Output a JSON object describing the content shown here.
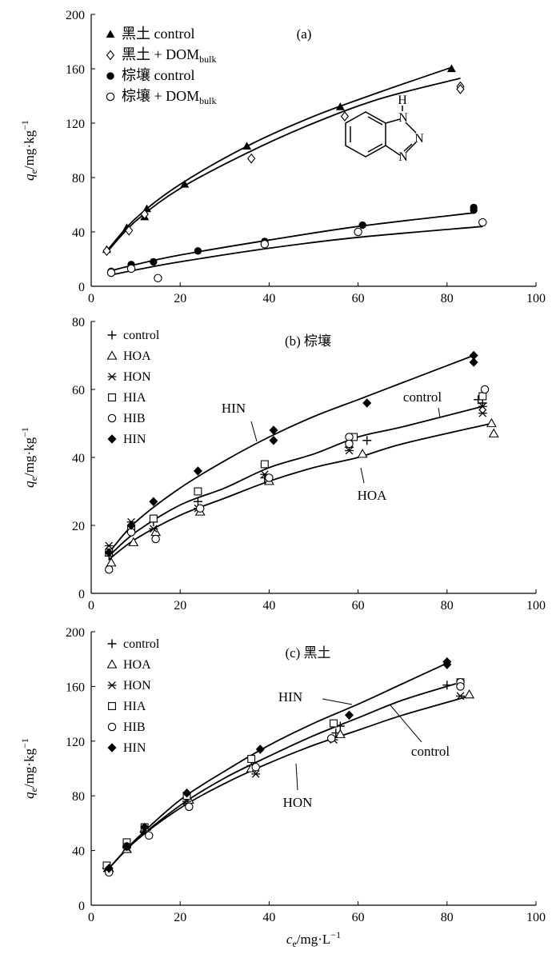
{
  "figure": {
    "x_axis_label": {
      "symbol": "c",
      "sub": "e",
      "unit": "/mg·L",
      "sup": "−1"
    },
    "y_axis_label": {
      "symbol": "q",
      "sub": "e",
      "unit": "/mg·kg",
      "sup": "−1"
    }
  },
  "chart_data": [
    {
      "type": "scatter",
      "panel": "a",
      "title": "(a)",
      "xlim": [
        0,
        100
      ],
      "ylim": [
        0,
        200
      ],
      "xticks": [
        0,
        20,
        40,
        60,
        80,
        100
      ],
      "yticks": [
        0,
        40,
        80,
        120,
        160,
        200
      ],
      "legend_position": "top-left",
      "series": [
        {
          "name": "黑土 control",
          "marker": "triangle-filled",
          "points": [
            [
              3.5,
              27
            ],
            [
              8,
              43
            ],
            [
              12,
              51
            ],
            [
              12.5,
              57
            ],
            [
              21,
              75
            ],
            [
              35,
              103
            ],
            [
              56,
              132
            ],
            [
              81,
              160
            ]
          ]
        },
        {
          "name": "黑土 + DOM",
          "name_sub": "bulk",
          "marker": "diamond-open",
          "points": [
            [
              3.5,
              26
            ],
            [
              8.5,
              41
            ],
            [
              12,
              53
            ],
            [
              36,
              94
            ],
            [
              57,
              125
            ],
            [
              83,
              147
            ],
            [
              83,
              145
            ]
          ]
        },
        {
          "name": "棕壤 control",
          "marker": "circle-filled",
          "points": [
            [
              4.5,
              11
            ],
            [
              9,
              16
            ],
            [
              14,
              18
            ],
            [
              24,
              26
            ],
            [
              39,
              33
            ],
            [
              61,
              45
            ],
            [
              86,
              58
            ],
            [
              86,
              56
            ]
          ]
        },
        {
          "name": "棕壤 + DOM",
          "name_sub": "bulk",
          "marker": "circle-open",
          "points": [
            [
              4.5,
              10
            ],
            [
              9,
              13
            ],
            [
              15,
              6
            ],
            [
              39,
              31
            ],
            [
              60,
              40
            ],
            [
              88,
              47
            ]
          ]
        }
      ],
      "fits": [
        {
          "points": [
            [
              3.5,
              26
            ],
            [
              10,
              50
            ],
            [
              20,
              75
            ],
            [
              35,
              103
            ],
            [
              50,
              125
            ],
            [
              65,
              143
            ],
            [
              81,
              161
            ]
          ]
        },
        {
          "points": [
            [
              3.5,
              25
            ],
            [
              10,
              48
            ],
            [
              20,
              72
            ],
            [
              35,
              98
            ],
            [
              50,
              120
            ],
            [
              65,
              138
            ],
            [
              83,
              153
            ]
          ]
        },
        {
          "points": [
            [
              4,
              11
            ],
            [
              10,
              16
            ],
            [
              20,
              23
            ],
            [
              40,
              34
            ],
            [
              60,
              44
            ],
            [
              86,
              54
            ]
          ]
        },
        {
          "points": [
            [
              4,
              8
            ],
            [
              10,
              12
            ],
            [
              20,
              18
            ],
            [
              40,
              28
            ],
            [
              60,
              36
            ],
            [
              88,
              44
            ]
          ]
        }
      ],
      "inset_molecule": {
        "labels": [
          "H",
          "N",
          "N",
          "N"
        ]
      }
    },
    {
      "type": "scatter",
      "panel": "b",
      "title": "(b) 棕壤",
      "xlim": [
        0,
        100
      ],
      "ylim": [
        0,
        80
      ],
      "xticks": [
        0,
        20,
        40,
        60,
        80,
        100
      ],
      "yticks": [
        0,
        20,
        40,
        60,
        80
      ],
      "legend_position": "top-left",
      "series": [
        {
          "name": "control",
          "marker": "plus",
          "points": [
            [
              4,
              11
            ],
            [
              9,
              18
            ],
            [
              14,
              21
            ],
            [
              24,
              27
            ],
            [
              39,
              34
            ],
            [
              58,
              43
            ],
            [
              62,
              45
            ],
            [
              87,
              57
            ],
            [
              88,
              56
            ]
          ]
        },
        {
          "name": "HOA",
          "marker": "triangle-open",
          "points": [
            [
              4.5,
              9
            ],
            [
              9.5,
              15
            ],
            [
              14.5,
              18
            ],
            [
              24.5,
              24
            ],
            [
              40,
              33
            ],
            [
              61,
              41
            ],
            [
              90,
              50
            ],
            [
              90.5,
              47
            ]
          ]
        },
        {
          "name": "HON",
          "marker": "asterisk",
          "points": [
            [
              4,
              14
            ],
            [
              9,
              21
            ],
            [
              14,
              19
            ],
            [
              24,
              25
            ],
            [
              39,
              35
            ],
            [
              58,
              42
            ],
            [
              88,
              53
            ],
            [
              88,
              55
            ]
          ]
        },
        {
          "name": "HIA",
          "marker": "square-open",
          "points": [
            [
              4,
              12
            ],
            [
              9,
              19
            ],
            [
              14,
              22
            ],
            [
              24,
              30
            ],
            [
              39,
              38
            ],
            [
              59,
              46
            ],
            [
              88,
              58
            ]
          ]
        },
        {
          "name": "HIB",
          "marker": "circle-open",
          "points": [
            [
              4,
              7
            ],
            [
              9,
              18
            ],
            [
              14.5,
              16
            ],
            [
              24.5,
              25
            ],
            [
              40,
              34
            ],
            [
              58,
              46
            ],
            [
              58,
              44
            ],
            [
              88.5,
              60
            ]
          ]
        },
        {
          "name": "HIN",
          "marker": "diamond-filled",
          "points": [
            [
              4,
              12
            ],
            [
              9,
              20
            ],
            [
              14,
              27
            ],
            [
              24,
              36
            ],
            [
              41,
              48
            ],
            [
              41,
              45
            ],
            [
              62,
              56
            ],
            [
              86,
              70
            ],
            [
              86,
              68
            ]
          ]
        }
      ],
      "fits": [
        {
          "label": "HIN",
          "points": [
            [
              4,
              12
            ],
            [
              10,
              21
            ],
            [
              20,
              31
            ],
            [
              30,
              39
            ],
            [
              40,
              46
            ],
            [
              50,
              52
            ],
            [
              60,
              57
            ],
            [
              70,
              62
            ],
            [
              86,
              70
            ]
          ]
        },
        {
          "label": "control",
          "points": [
            [
              4,
              11
            ],
            [
              10,
              18
            ],
            [
              20,
              26
            ],
            [
              30,
              31
            ],
            [
              40,
              37
            ],
            [
              50,
              41
            ],
            [
              60,
              46
            ],
            [
              70,
              49
            ],
            [
              88,
              55
            ]
          ]
        },
        {
          "label": "HOA",
          "points": [
            [
              4,
              10
            ],
            [
              10,
              16
            ],
            [
              20,
              23
            ],
            [
              30,
              28
            ],
            [
              40,
              33
            ],
            [
              50,
              37
            ],
            [
              60,
              40
            ],
            [
              70,
              44
            ],
            [
              90,
              50
            ]
          ]
        }
      ],
      "annotations": [
        "HIN",
        "control",
        "HOA"
      ]
    },
    {
      "type": "scatter",
      "panel": "c",
      "title": "(c) 黑土",
      "xlim": [
        0,
        100
      ],
      "ylim": [
        0,
        200
      ],
      "xticks": [
        0,
        20,
        40,
        60,
        80,
        100
      ],
      "yticks": [
        0,
        40,
        80,
        120,
        160,
        200
      ],
      "legend_position": "top-left",
      "series": [
        {
          "name": "control",
          "marker": "plus",
          "points": [
            [
              3.5,
              27
            ],
            [
              8,
              43
            ],
            [
              12.5,
              55
            ],
            [
              21.5,
              78
            ],
            [
              36,
              102
            ],
            [
              55,
              126
            ],
            [
              56,
              131
            ],
            [
              80,
              161
            ]
          ]
        },
        {
          "name": "HOA",
          "marker": "triangle-open",
          "points": [
            [
              4,
              27
            ],
            [
              8,
              41
            ],
            [
              12,
              56
            ],
            [
              22,
              77
            ],
            [
              36,
              100
            ],
            [
              56,
              125
            ],
            [
              85,
              154
            ]
          ]
        },
        {
          "name": "HON",
          "marker": "asterisk",
          "points": [
            [
              3.5,
              27
            ],
            [
              8,
              42
            ],
            [
              12,
              53
            ],
            [
              21.5,
              76
            ],
            [
              37,
              96
            ],
            [
              54.5,
              121
            ],
            [
              83,
              153
            ]
          ]
        },
        {
          "name": "HIA",
          "marker": "square-open",
          "points": [
            [
              3.5,
              29
            ],
            [
              8,
              46
            ],
            [
              12,
              57
            ],
            [
              21.5,
              80
            ],
            [
              36,
              107
            ],
            [
              54.5,
              133
            ],
            [
              83,
              163
            ]
          ]
        },
        {
          "name": "HIB",
          "marker": "circle-open",
          "points": [
            [
              4,
              24
            ],
            [
              8,
              43
            ],
            [
              13,
              51
            ],
            [
              22,
              72
            ],
            [
              37,
              101
            ],
            [
              54,
              122
            ],
            [
              83,
              163
            ],
            [
              83,
              160
            ]
          ]
        },
        {
          "name": "HIN",
          "marker": "diamond-filled",
          "points": [
            [
              4,
              27
            ],
            [
              8,
              43
            ],
            [
              12,
              57
            ],
            [
              21.5,
              82
            ],
            [
              38,
              114
            ],
            [
              58,
              139
            ],
            [
              80,
              178
            ],
            [
              80,
              176
            ]
          ]
        }
      ],
      "fits": [
        {
          "label": "HIN",
          "points": [
            [
              4,
              27
            ],
            [
              10,
              48
            ],
            [
              20,
              77
            ],
            [
              30,
              98
            ],
            [
              40,
              117
            ],
            [
              50,
              133
            ],
            [
              60,
              147
            ],
            [
              70,
              162
            ],
            [
              80,
              177
            ]
          ]
        },
        {
          "label": "control",
          "points": [
            [
              4,
              27
            ],
            [
              10,
              47
            ],
            [
              20,
              73
            ],
            [
              30,
              93
            ],
            [
              40,
              109
            ],
            [
              50,
              124
            ],
            [
              60,
              137
            ],
            [
              70,
              150
            ],
            [
              82,
              162
            ]
          ]
        },
        {
          "label": "HON",
          "points": [
            [
              4,
              27
            ],
            [
              10,
              47
            ],
            [
              20,
              71
            ],
            [
              30,
              89
            ],
            [
              40,
              104
            ],
            [
              50,
              117
            ],
            [
              60,
              128
            ],
            [
              70,
              139
            ],
            [
              85,
              153
            ]
          ]
        }
      ],
      "annotations": [
        "HIN",
        "control",
        "HON"
      ]
    }
  ]
}
